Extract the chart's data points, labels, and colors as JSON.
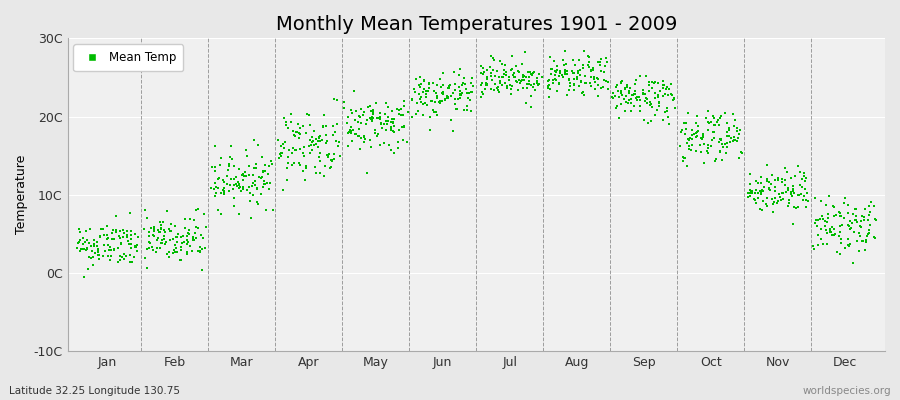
{
  "title": "Monthly Mean Temperatures 1901 - 2009",
  "ylabel": "Temperature",
  "xlabel_bottom_left": "Latitude 32.25 Longitude 130.75",
  "xlabel_bottom_right": "worldspecies.org",
  "yticks": [
    -10,
    0,
    10,
    20,
    30
  ],
  "ytick_labels": [
    "-10C",
    "0C",
    "10C",
    "20C",
    "30C"
  ],
  "ylim": [
    -10,
    30
  ],
  "months": [
    "Jan",
    "Feb",
    "Mar",
    "Apr",
    "May",
    "Jun",
    "Jul",
    "Aug",
    "Sep",
    "Oct",
    "Nov",
    "Dec"
  ],
  "dot_color": "#00bb00",
  "dot_size": 2.5,
  "background_color": "#e8e8e8",
  "plot_bg_color": "#f0f0f0",
  "legend_label": "Mean Temp",
  "title_fontsize": 14,
  "axis_fontsize": 9,
  "monthly_means": [
    3.5,
    4.2,
    12.0,
    16.5,
    19.0,
    22.5,
    25.0,
    25.0,
    22.5,
    17.5,
    10.5,
    6.0
  ],
  "monthly_stds": [
    1.5,
    1.8,
    1.8,
    2.2,
    1.8,
    1.5,
    1.3,
    1.3,
    1.5,
    1.8,
    1.5,
    1.8
  ],
  "n_years": 109,
  "year_start": 1901,
  "seed": 42
}
